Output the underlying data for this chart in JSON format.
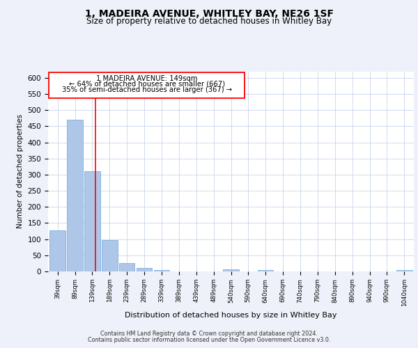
{
  "title": "1, MADEIRA AVENUE, WHITLEY BAY, NE26 1SF",
  "subtitle": "Size of property relative to detached houses in Whitley Bay",
  "xlabel": "Distribution of detached houses by size in Whitley Bay",
  "ylabel": "Number of detached properties",
  "footnote1": "Contains HM Land Registry data © Crown copyright and database right 2024.",
  "footnote2": "Contains public sector information licensed under the Open Government Licence v3.0.",
  "categories": [
    "39sqm",
    "89sqm",
    "139sqm",
    "189sqm",
    "239sqm",
    "289sqm",
    "339sqm",
    "389sqm",
    "439sqm",
    "489sqm",
    "540sqm",
    "590sqm",
    "640sqm",
    "690sqm",
    "740sqm",
    "790sqm",
    "840sqm",
    "890sqm",
    "940sqm",
    "990sqm",
    "1040sqm"
  ],
  "values": [
    128,
    470,
    311,
    96,
    26,
    10,
    4,
    0,
    0,
    0,
    6,
    0,
    4,
    0,
    0,
    0,
    0,
    0,
    0,
    0,
    5
  ],
  "bar_color": "#aec6e8",
  "bar_edge_color": "#7aafe0",
  "red_line_x": 2.18,
  "annotation_line1": "1 MADEIRA AVENUE: 149sqm",
  "annotation_line2": "← 64% of detached houses are smaller (667)",
  "annotation_line3": "35% of semi-detached houses are larger (367) →",
  "ylim": [
    0,
    620
  ],
  "yticks": [
    0,
    50,
    100,
    150,
    200,
    250,
    300,
    350,
    400,
    450,
    500,
    550,
    600
  ],
  "bg_color": "#eef1f9",
  "plot_bg_color": "#ffffff",
  "grid_color": "#c8d4ea"
}
